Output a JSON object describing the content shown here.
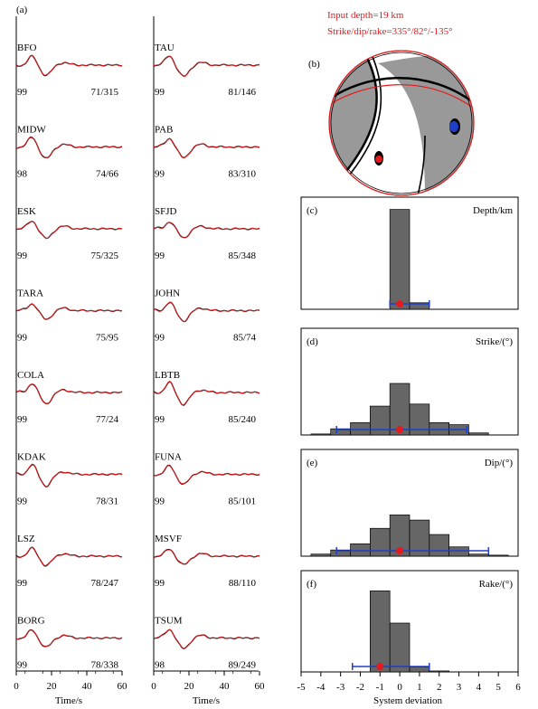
{
  "header": {
    "input_depth": "Input depth=19 km",
    "strike_dip_rake": "Strike/dip/rake=335°/82°/-135°"
  },
  "panel_labels": {
    "a": "(a)",
    "b": "(b)",
    "c": "(c)",
    "d": "(d)",
    "e": "(e)",
    "f": "(f)"
  },
  "waveform_axis": {
    "xlabel": "Time/s",
    "ticks": [
      "0",
      "20",
      "40",
      "60"
    ]
  },
  "stations": [
    {
      "name": "BFO",
      "fit": "99",
      "dist_az": "71/315",
      "col": 0,
      "row": 0
    },
    {
      "name": "MIDW",
      "fit": "98",
      "dist_az": "74/66",
      "col": 0,
      "row": 1
    },
    {
      "name": "ESK",
      "fit": "99",
      "dist_az": "75/325",
      "col": 0,
      "row": 2
    },
    {
      "name": "TARA",
      "fit": "99",
      "dist_az": "75/95",
      "col": 0,
      "row": 3
    },
    {
      "name": "COLA",
      "fit": "99",
      "dist_az": "77/24",
      "col": 0,
      "row": 4
    },
    {
      "name": "KDAK",
      "fit": "99",
      "dist_az": "78/31",
      "col": 0,
      "row": 5
    },
    {
      "name": "LSZ",
      "fit": "99",
      "dist_az": "78/247",
      "col": 0,
      "row": 6
    },
    {
      "name": "BORG",
      "fit": "99",
      "dist_az": "78/338",
      "col": 0,
      "row": 7
    },
    {
      "name": "TAU",
      "fit": "99",
      "dist_az": "81/146",
      "col": 1,
      "row": 0
    },
    {
      "name": "PAB",
      "fit": "99",
      "dist_az": "83/310",
      "col": 1,
      "row": 1
    },
    {
      "name": "SFJD",
      "fit": "99",
      "dist_az": "85/348",
      "col": 1,
      "row": 2
    },
    {
      "name": "JOHN",
      "fit": "99",
      "dist_az": "85/74",
      "col": 1,
      "row": 3
    },
    {
      "name": "LBTB",
      "fit": "99",
      "dist_az": "85/240",
      "col": 1,
      "row": 4
    },
    {
      "name": "FUNA",
      "fit": "99",
      "dist_az": "85/101",
      "col": 1,
      "row": 5
    },
    {
      "name": "MSVF",
      "fit": "99",
      "dist_az": "88/110",
      "col": 1,
      "row": 6
    },
    {
      "name": "TSUM",
      "fit": "98",
      "dist_az": "89/249",
      "col": 1,
      "row": 7
    }
  ],
  "hist_axis": {
    "xlabel": "System deviation",
    "ticks": [
      "-5",
      "-4",
      "-3",
      "-2",
      "-1",
      "0",
      "1",
      "2",
      "3",
      "4",
      "5",
      "6"
    ]
  },
  "chart_data": [
    {
      "type": "bar",
      "panel": "c",
      "title": "Depth/km",
      "bin_edges": [
        -0.5,
        0.5,
        1.5
      ],
      "values": [
        0.92,
        0.06
      ],
      "mean": 0,
      "error_range": [
        -0.5,
        1.5
      ],
      "xlim": [
        -5,
        6
      ]
    },
    {
      "type": "bar",
      "panel": "d",
      "title": "Strike/(°)",
      "bin_edges": [
        -4.5,
        -3.5,
        -2.5,
        -1.5,
        -0.5,
        0.5,
        1.5,
        2.5,
        3.5,
        4.5
      ],
      "values": [
        0.01,
        0.06,
        0.12,
        0.28,
        0.5,
        0.3,
        0.12,
        0.1,
        0.02
      ],
      "mean": 0,
      "error_range": [
        -3.2,
        3.4
      ],
      "xlim": [
        -5,
        6
      ]
    },
    {
      "type": "bar",
      "panel": "e",
      "title": "Dip/(°)",
      "bin_edges": [
        -4.5,
        -3.5,
        -2.5,
        -1.5,
        -0.5,
        0.5,
        1.5,
        2.5,
        3.5,
        4.5,
        5.5
      ],
      "values": [
        0.02,
        0.06,
        0.12,
        0.27,
        0.4,
        0.35,
        0.21,
        0.09,
        0.02,
        0.01
      ],
      "mean": 0,
      "error_range": [
        -3.2,
        4.5
      ],
      "xlim": [
        -5,
        6
      ]
    },
    {
      "type": "bar",
      "panel": "f",
      "title": "Rake/(°)",
      "bin_edges": [
        -1.5,
        -0.5,
        0.5,
        1.5,
        2.5
      ],
      "values": [
        0.83,
        0.5,
        0.05,
        0.01
      ],
      "mean": -1,
      "error_range": [
        -2.4,
        1.5
      ],
      "xlim": [
        -5,
        6
      ]
    }
  ],
  "colors": {
    "observed": "#000000",
    "synthetic": "#e41a1c",
    "bars": "#666666",
    "errorbar": "#1f3fc8",
    "mean_marker": "#e41a1c",
    "beachball_fill": "#999999",
    "beachball_outline": "#e41a1c",
    "p_axis": "#e41a1c",
    "t_axis": "#1f3fc8"
  }
}
